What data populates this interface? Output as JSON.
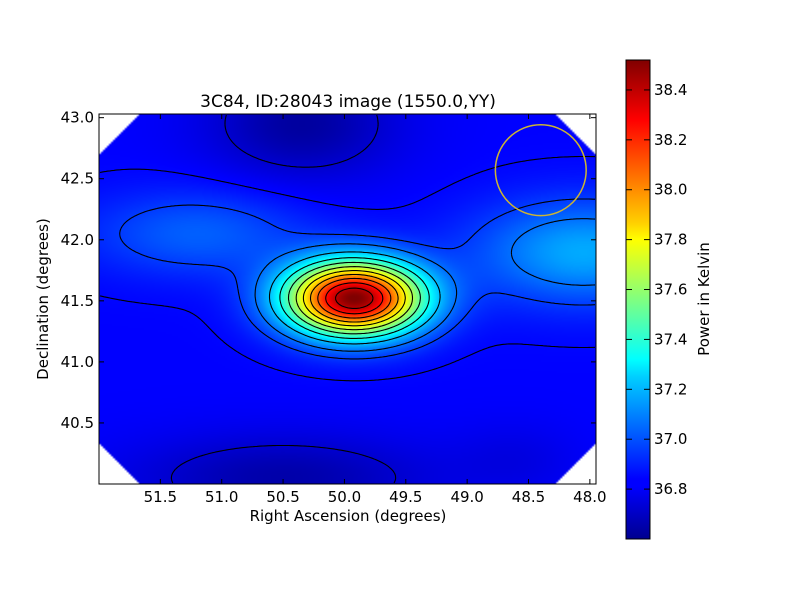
{
  "chart_data": {
    "type": "heatmap",
    "title": "3C84, ID:28043 image (1550.0,YY)",
    "xlabel": "Right Ascension (degrees)",
    "ylabel": "Declination (degrees)",
    "xlim": [
      52.0,
      47.95
    ],
    "ylim": [
      40.0,
      43.03
    ],
    "x_ticks": [
      {
        "value": 51.5,
        "label": "51.5"
      },
      {
        "value": 51.0,
        "label": "51.0"
      },
      {
        "value": 50.5,
        "label": "50.5"
      },
      {
        "value": 50.0,
        "label": "50.0"
      },
      {
        "value": 49.5,
        "label": "49.5"
      },
      {
        "value": 49.0,
        "label": "49.0"
      },
      {
        "value": 48.5,
        "label": "48.5"
      },
      {
        "value": 48.0,
        "label": "48.0"
      }
    ],
    "y_ticks": [
      {
        "value": 40.5,
        "label": "40.5"
      },
      {
        "value": 41.0,
        "label": "41.0"
      },
      {
        "value": 41.5,
        "label": "41.5"
      },
      {
        "value": 42.0,
        "label": "42.0"
      },
      {
        "value": 42.5,
        "label": "42.5"
      },
      {
        "value": 43.0,
        "label": "43.0"
      }
    ],
    "colormap": "jet",
    "colorbar": {
      "label": "Power in Kelvin",
      "range": [
        36.6,
        38.52
      ],
      "ticks": [
        {
          "value": 36.8,
          "label": "36.8"
        },
        {
          "value": 37.0,
          "label": "37.0"
        },
        {
          "value": 37.2,
          "label": "37.2"
        },
        {
          "value": 37.4,
          "label": "37.4"
        },
        {
          "value": 37.6,
          "label": "37.6"
        },
        {
          "value": 37.8,
          "label": "37.8"
        },
        {
          "value": 38.0,
          "label": "38.0"
        },
        {
          "value": 38.2,
          "label": "38.2"
        },
        {
          "value": 38.4,
          "label": "38.4"
        }
      ]
    },
    "peak": {
      "ra": 49.92,
      "dec": 41.52,
      "value": 38.52
    },
    "contour_levels": [
      36.75,
      36.85,
      36.95,
      37.05,
      37.2,
      37.35,
      37.5,
      37.65,
      37.8,
      37.95,
      38.1,
      38.25,
      38.4
    ],
    "beam_circle": {
      "ra": 48.4,
      "dec": 42.57,
      "radius_deg": 0.37,
      "color": "#cdb533"
    },
    "grid": false,
    "legend": "none"
  }
}
